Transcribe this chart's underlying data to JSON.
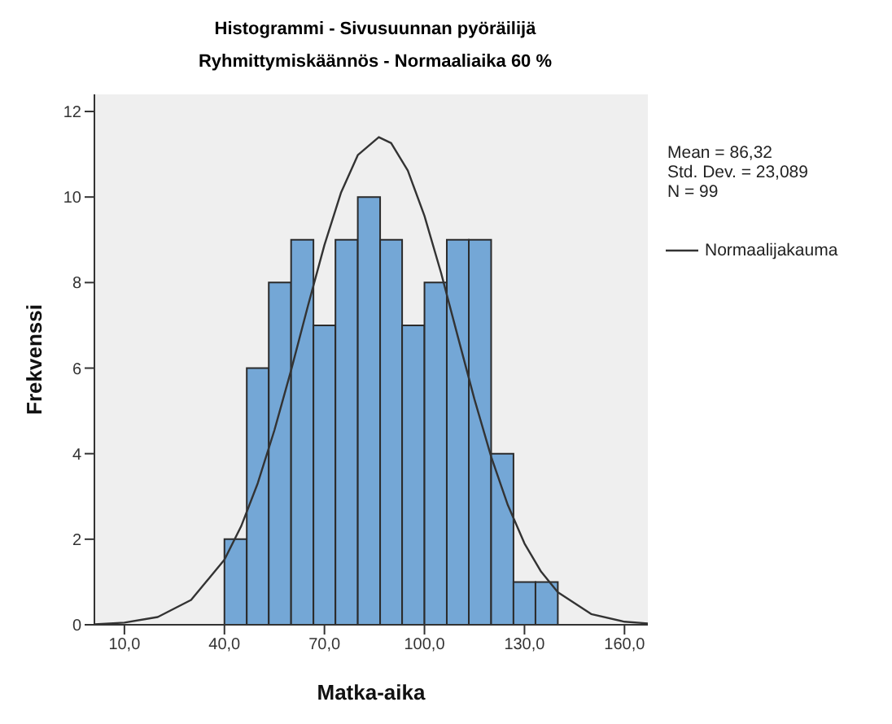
{
  "chart_data": {
    "type": "histogram",
    "title": "Histogrammi - Sivusuunnan pyöräilijä",
    "subtitle": "Ryhmittymiskäännös - Normaaliaika 60 %",
    "xlabel": "Matka-aika",
    "ylabel": "Frekvenssi",
    "bins": [
      40,
      46.7,
      53.3,
      60,
      66.7,
      73.3,
      80,
      86.7,
      93.3,
      100,
      106.7,
      113.3,
      120,
      126.7,
      133.3,
      140
    ],
    "values": [
      2,
      6,
      8,
      9,
      7,
      9,
      10,
      9,
      7,
      8,
      9,
      9,
      4,
      1,
      1
    ],
    "color": "#74a7d6",
    "series": [
      {
        "type": "line",
        "name": "Normaalijakauma",
        "color": "#333333",
        "x": [
          1,
          10,
          20,
          30,
          40,
          45,
          50,
          55,
          60,
          65,
          70,
          75,
          80,
          86.3,
          90,
          95,
          100,
          105,
          110,
          115,
          120,
          125,
          130,
          135,
          140,
          150,
          160,
          167
        ],
        "values": [
          0.01,
          0.05,
          0.18,
          0.58,
          1.52,
          2.3,
          3.31,
          4.55,
          5.95,
          7.44,
          8.88,
          10.11,
          10.98,
          11.4,
          11.26,
          10.62,
          9.56,
          8.22,
          6.74,
          5.27,
          3.93,
          2.8,
          1.9,
          1.24,
          0.76,
          0.25,
          0.07,
          0.03
        ]
      }
    ],
    "xlim": [
      1,
      167
    ],
    "xticks": [
      {
        "value": 10,
        "label": "10,0"
      },
      {
        "value": 40,
        "label": "40,0"
      },
      {
        "value": 70,
        "label": "70,0"
      },
      {
        "value": 100,
        "label": "100,0"
      },
      {
        "value": 130,
        "label": "130,0"
      },
      {
        "value": 160,
        "label": "160,0"
      }
    ],
    "ylim": [
      0,
      12.4
    ],
    "yticks": [
      0,
      2,
      4,
      6,
      8,
      10,
      12
    ],
    "legend": "right",
    "marker": "none",
    "annotations": [
      "Mean = 86,32",
      "Std. Dev. = 23,089",
      "N = 99"
    ]
  }
}
